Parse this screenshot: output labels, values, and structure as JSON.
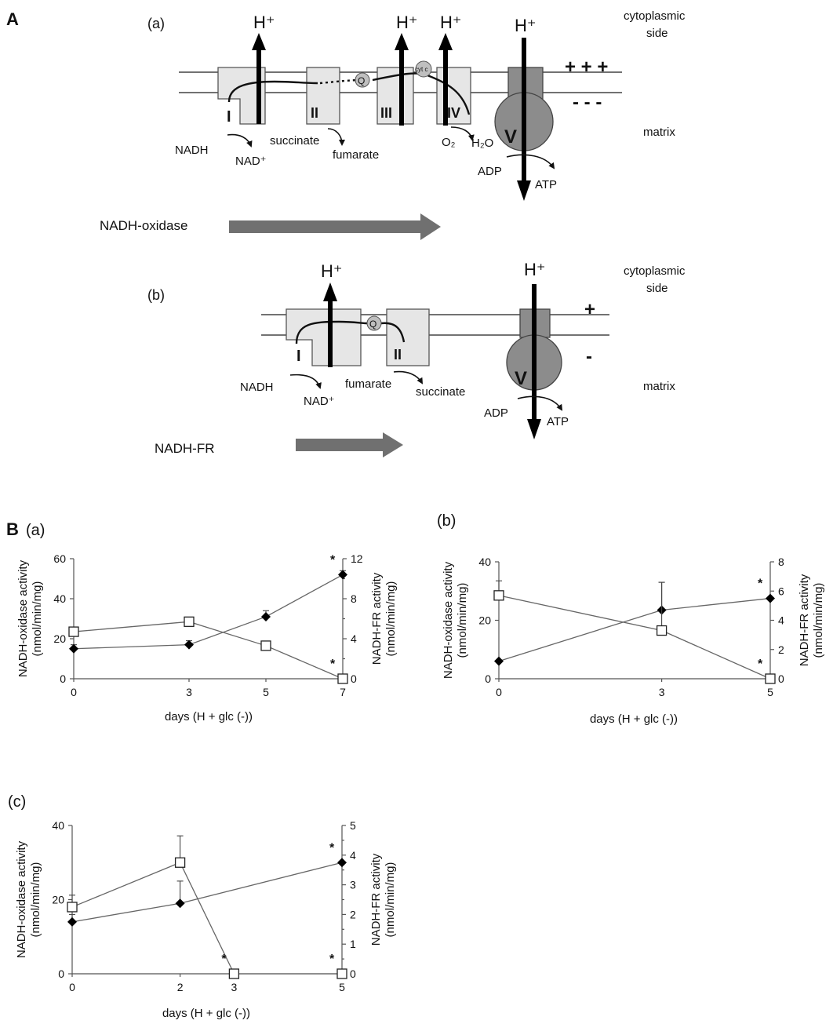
{
  "panel_a_letter": "A",
  "panel_b_letter": "B",
  "diagram": {
    "a": {
      "label": "(a)",
      "protons": [
        "H⁺",
        "H⁺",
        "H⁺",
        "H⁺"
      ],
      "side_top": [
        "cytoplasmic",
        "side"
      ],
      "side_bottom": "matrix",
      "charge_top": "+ + +",
      "charge_bottom": "- - -",
      "complexes": [
        "I",
        "II",
        "III",
        "IV",
        "V"
      ],
      "quinone": "Q",
      "cytc": "cyt c",
      "substrates": [
        "NADH",
        "NAD⁺",
        "succinate",
        "fumarate",
        "O₂",
        "H₂O",
        "ADP",
        "ATP"
      ],
      "flow_label": "NADH-oxidase"
    },
    "b": {
      "label": "(b)",
      "protons": [
        "H⁺",
        "H⁺"
      ],
      "side_top": [
        "cytoplasmic",
        "side"
      ],
      "side_bottom": "matrix",
      "charge_top": "+",
      "charge_bottom": "-",
      "complexes": [
        "I",
        "II",
        "V"
      ],
      "quinone": "Q",
      "substrates": [
        "NADH",
        "NAD⁺",
        "fumarate",
        "succinate",
        "ADP",
        "ATP"
      ],
      "flow_label": "NADH-FR"
    }
  },
  "chart_data": [
    {
      "type": "line",
      "label": "(a)",
      "xlabel": "days (H + glc (-))",
      "ylabel_left": "NADH-oxidase activity (nmol/min/mg)",
      "ylabel_right": "NADH-FR activity (nmol/min/mg)",
      "x": [
        0,
        3,
        5,
        7
      ],
      "xlim": [
        0,
        7
      ],
      "ylim_left": [
        0,
        60
      ],
      "ylim_right": [
        0,
        12
      ],
      "yticks_left": [
        0,
        20,
        40,
        60
      ],
      "yticks_right": [
        0,
        4,
        8,
        12
      ],
      "yminor_right": [
        2,
        6,
        10
      ],
      "series": [
        {
          "marker": "filled-diamond",
          "axis": "left",
          "values": [
            15,
            17,
            31,
            52
          ],
          "err": [
            2,
            2,
            3,
            2
          ]
        },
        {
          "marker": "open-square",
          "axis": "right",
          "values": [
            4.7,
            5.7,
            3.3,
            0
          ],
          "err": [
            0.3,
            0,
            0,
            0
          ]
        }
      ],
      "annotations": [
        {
          "x": 7,
          "side": "left",
          "y": 52,
          "text": "*"
        },
        {
          "x": 7,
          "side": "right",
          "y": 0,
          "text": "*"
        }
      ]
    },
    {
      "type": "line",
      "label": "(b)",
      "xlabel": "days (H + glc (-))",
      "ylabel_left": "NADH-oxidase activity (nmol/min/mg)",
      "ylabel_right": "NADH-FR activity (nmol/min/mg)",
      "x": [
        0,
        3,
        5
      ],
      "xlim": [
        0,
        5
      ],
      "ylim_left": [
        0,
        40
      ],
      "ylim_right": [
        0,
        8
      ],
      "yticks_left": [
        0,
        20,
        40
      ],
      "yticks_right": [
        0,
        2,
        4,
        6,
        8
      ],
      "yminor_right": [],
      "series": [
        {
          "marker": "filled-diamond",
          "axis": "left",
          "values": [
            6,
            23.5,
            27.5
          ],
          "err": [
            0,
            9.5,
            0
          ]
        },
        {
          "marker": "open-square",
          "axis": "right",
          "values": [
            5.7,
            3.3,
            0
          ],
          "err": [
            1.0,
            3.3,
            0
          ]
        }
      ],
      "annotations": [
        {
          "x": 5,
          "side": "left",
          "y": 27.5,
          "text": "*"
        },
        {
          "x": 5,
          "side": "right",
          "y": 0,
          "text": "*"
        }
      ]
    },
    {
      "type": "line",
      "label": "(c)",
      "xlabel": "days (H + glc (-))",
      "ylabel_left": "NADH-oxidase activity (nmol/min/mg)",
      "ylabel_right": "NADH-FR activity (nmol/min/mg)",
      "x": [
        0,
        2,
        3,
        5
      ],
      "xlim": [
        0,
        5
      ],
      "ylim_left": [
        0,
        40
      ],
      "ylim_right": [
        0,
        5
      ],
      "yticks_left": [
        0,
        20,
        40
      ],
      "yticks_right": [
        0,
        1,
        2,
        3,
        4,
        5
      ],
      "yminor_right": [
        0.5,
        1.5,
        2.5,
        3.5,
        4.5
      ],
      "series": [
        {
          "marker": "filled-diamond",
          "axis": "left",
          "x": [
            0,
            2,
            5
          ],
          "values": [
            14,
            19,
            30
          ],
          "err": [
            2,
            6,
            0
          ]
        },
        {
          "marker": "open-square",
          "axis": "right",
          "x": [
            0,
            2,
            3,
            5
          ],
          "values": [
            2.25,
            3.75,
            0,
            0
          ],
          "err": [
            0.4,
            0.9,
            0,
            0
          ]
        }
      ],
      "annotations": [
        {
          "x": 5,
          "side": "left",
          "y": 30,
          "text": "*"
        },
        {
          "x": 3,
          "side": "right",
          "y": 0,
          "text": "*"
        },
        {
          "x": 5,
          "side": "right",
          "y": 0,
          "text": "*"
        }
      ]
    }
  ]
}
